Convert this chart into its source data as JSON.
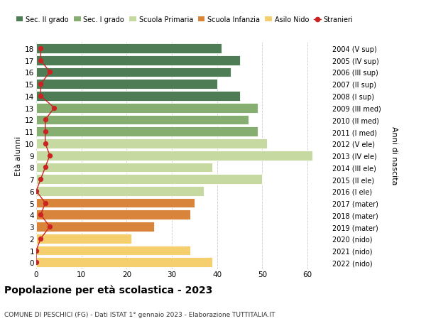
{
  "ages": [
    0,
    1,
    2,
    3,
    4,
    5,
    6,
    7,
    8,
    9,
    10,
    11,
    12,
    13,
    14,
    15,
    16,
    17,
    18
  ],
  "bar_values": [
    39,
    34,
    21,
    26,
    34,
    35,
    37,
    50,
    39,
    61,
    51,
    49,
    47,
    49,
    45,
    40,
    43,
    45,
    41
  ],
  "stranieri": [
    0,
    0,
    1,
    3,
    1,
    2,
    0,
    1,
    2,
    3,
    2,
    2,
    2,
    4,
    1,
    1,
    3,
    1,
    1
  ],
  "right_labels": [
    "2022 (nido)",
    "2021 (nido)",
    "2020 (nido)",
    "2019 (mater)",
    "2018 (mater)",
    "2017 (mater)",
    "2016 (I ele)",
    "2015 (II ele)",
    "2014 (III ele)",
    "2013 (IV ele)",
    "2012 (V ele)",
    "2011 (I med)",
    "2010 (II med)",
    "2009 (III med)",
    "2008 (I sup)",
    "2007 (II sup)",
    "2006 (III sup)",
    "2005 (IV sup)",
    "2004 (V sup)"
  ],
  "bar_colors": [
    "#f5cf6e",
    "#f5cf6e",
    "#f5cf6e",
    "#d9843b",
    "#d9843b",
    "#d9843b",
    "#c5d9a0",
    "#c5d9a0",
    "#c5d9a0",
    "#c5d9a0",
    "#c5d9a0",
    "#85ae70",
    "#85ae70",
    "#85ae70",
    "#4d7c55",
    "#4d7c55",
    "#4d7c55",
    "#4d7c55",
    "#4d7c55"
  ],
  "legend_labels": [
    "Sec. II grado",
    "Sec. I grado",
    "Scuola Primaria",
    "Scuola Infanzia",
    "Asilo Nido",
    "Stranieri"
  ],
  "legend_colors": [
    "#4d7c55",
    "#85ae70",
    "#c5d9a0",
    "#d9843b",
    "#f5cf6e",
    "#cc2222"
  ],
  "title": "Popolazione per età scolastica - 2023",
  "subtitle": "COMUNE DI PESCHICI (FG) - Dati ISTAT 1° gennaio 2023 - Elaborazione TUTTITALIA.IT",
  "ylabel": "Età alunni",
  "right_ylabel": "Anni di nascita",
  "xlim": [
    0,
    65
  ],
  "xticks": [
    0,
    10,
    20,
    30,
    40,
    50,
    60
  ],
  "background_color": "#ffffff",
  "grid_color": "#cccccc",
  "bar_height": 0.82,
  "stranieri_color": "#cc2222"
}
